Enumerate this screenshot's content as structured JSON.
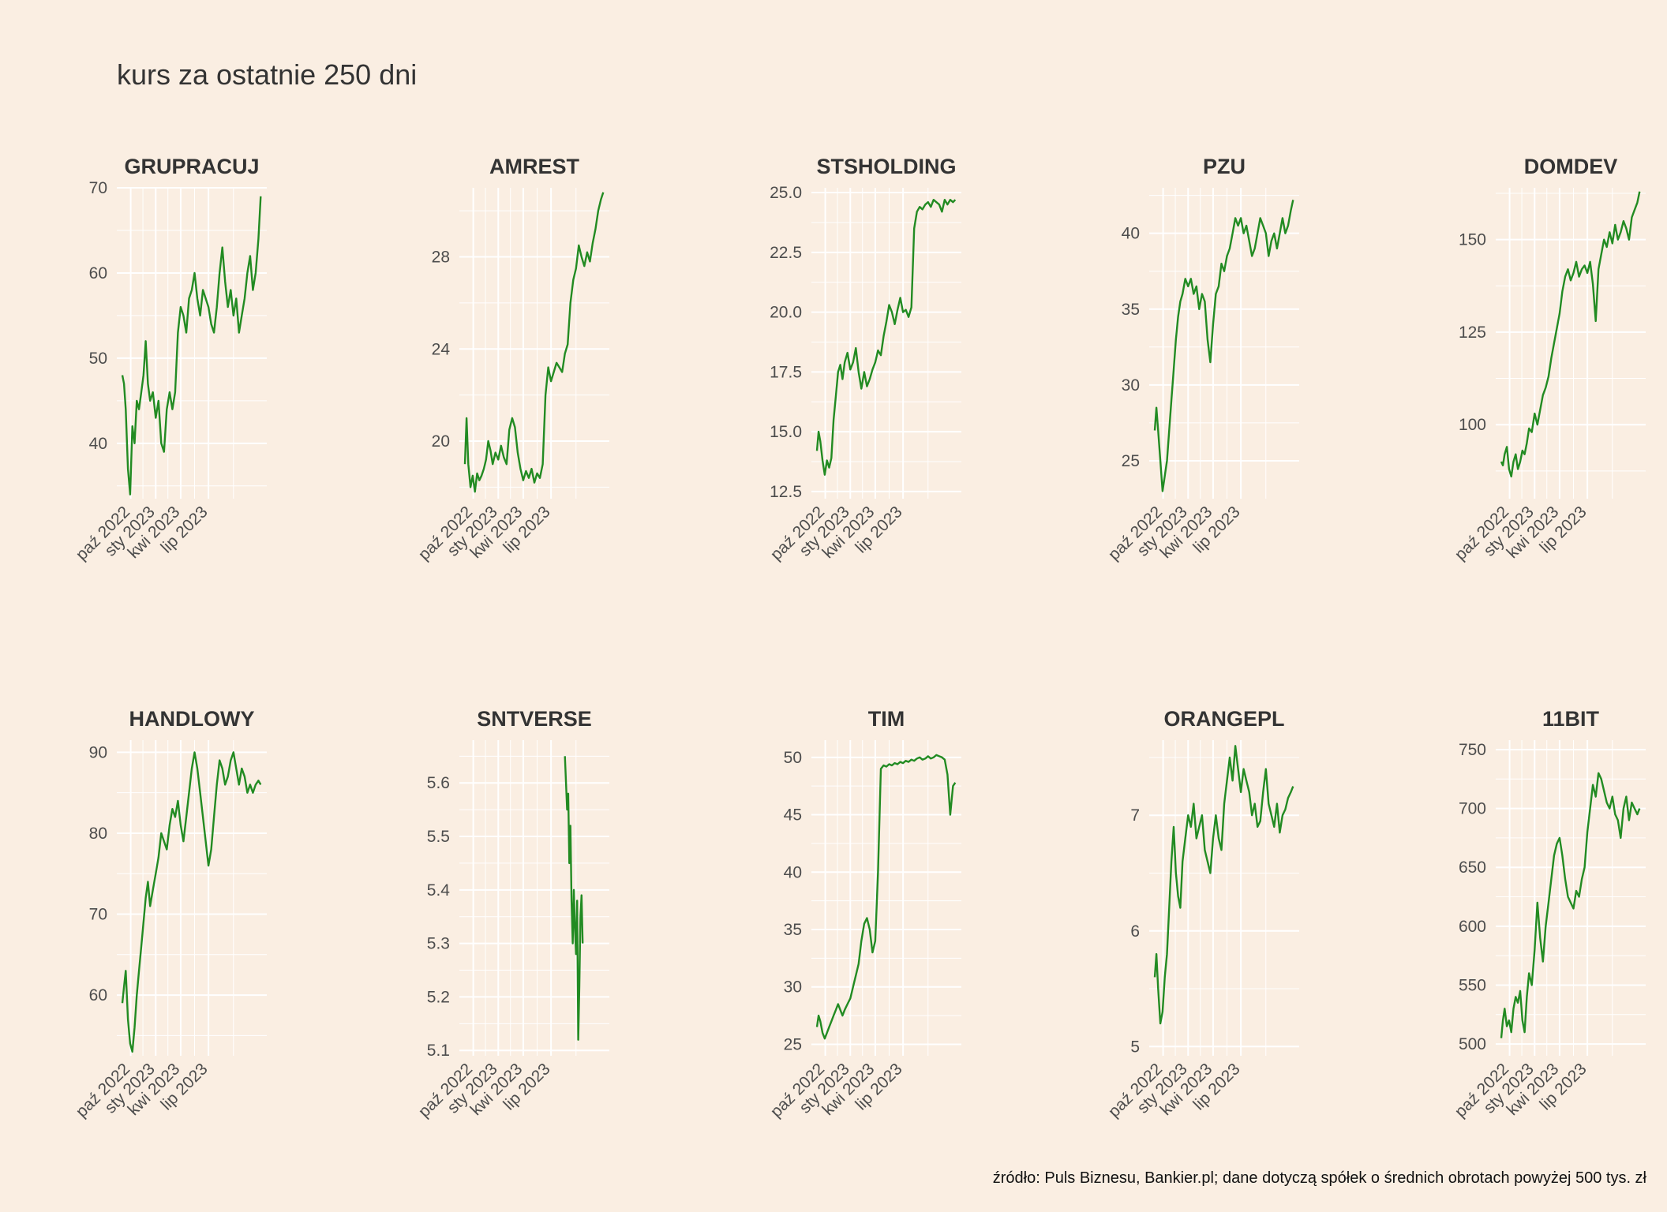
{
  "title": "kurs za ostatnie 250 dni",
  "caption": "źródło: Puls Biznesu, Bankier.pl; dane dotyczą spółek o średnich obrotach powyżej 500 tys. zł",
  "colors": {
    "background": "#FAEEE2",
    "line": "#228B22",
    "grid": "#FFFFFF"
  },
  "x_tick_labels": [
    "paź 2022",
    "sty 2023",
    "kwi 2023",
    "lip 2023"
  ],
  "chart_data": [
    {
      "type": "line",
      "title": "GRUPRACUJ",
      "ylim": [
        33.5,
        70
      ],
      "yticks": [
        40,
        50,
        60,
        70
      ],
      "x": [
        0,
        3,
        6,
        10,
        14,
        18,
        22,
        26,
        30,
        34,
        38,
        42,
        46,
        50,
        55,
        60,
        65,
        70,
        75,
        80,
        85,
        90,
        95,
        100,
        105,
        110,
        115,
        120,
        125,
        130,
        135,
        140,
        145,
        150,
        155,
        160,
        165,
        170,
        175,
        180,
        185,
        190,
        195,
        200,
        205,
        210,
        215,
        220,
        225,
        230,
        235,
        240,
        245,
        249
      ],
      "values": [
        48,
        47,
        44,
        37,
        34,
        42,
        40,
        45,
        44,
        46,
        48,
        52,
        47,
        45,
        46,
        43,
        45,
        40,
        39,
        44,
        46,
        44,
        46,
        53,
        56,
        55,
        53,
        57,
        58,
        60,
        57,
        55,
        58,
        57,
        56,
        54,
        53,
        56,
        60,
        63,
        59,
        56,
        58,
        55,
        57,
        53,
        55,
        57,
        60,
        62,
        58,
        60,
        64,
        69
      ]
    },
    {
      "type": "line",
      "title": "AMREST",
      "ylim": [
        17.5,
        31
      ],
      "yticks": [
        20,
        24,
        28
      ],
      "x": [
        0,
        3,
        6,
        10,
        14,
        18,
        22,
        26,
        30,
        34,
        38,
        42,
        46,
        50,
        55,
        60,
        65,
        70,
        75,
        80,
        85,
        90,
        95,
        100,
        105,
        110,
        115,
        120,
        125,
        130,
        135,
        140,
        145,
        150,
        155,
        160,
        165,
        170,
        175,
        180,
        185,
        190,
        195,
        200,
        205,
        210,
        215,
        220,
        225,
        230,
        235,
        240,
        245,
        249
      ],
      "values": [
        19,
        21,
        19,
        18,
        18.5,
        17.8,
        18.6,
        18.3,
        18.5,
        18.8,
        19.2,
        20,
        19.6,
        19,
        19.5,
        19.2,
        19.8,
        19.3,
        19,
        20.5,
        21,
        20.6,
        19.5,
        18.8,
        18.3,
        18.7,
        18.4,
        18.8,
        18.2,
        18.6,
        18.4,
        19,
        22,
        23.2,
        22.6,
        23,
        23.4,
        23.2,
        23,
        23.8,
        24.2,
        26,
        27,
        27.5,
        28.5,
        28,
        27.6,
        28.2,
        27.8,
        28.6,
        29.2,
        30,
        30.5,
        30.8
      ]
    },
    {
      "type": "line",
      "title": "STSHOLDING",
      "ylim": [
        12.2,
        25.2
      ],
      "yticks": [
        12.5,
        15.0,
        17.5,
        20.0,
        22.5,
        25.0
      ],
      "x": [
        0,
        3,
        6,
        10,
        14,
        18,
        22,
        26,
        30,
        34,
        38,
        42,
        46,
        50,
        55,
        60,
        65,
        70,
        75,
        80,
        85,
        90,
        95,
        100,
        105,
        110,
        115,
        120,
        125,
        130,
        135,
        140,
        145,
        150,
        155,
        160,
        165,
        170,
        175,
        180,
        185,
        190,
        195,
        200,
        205,
        210,
        215,
        220,
        225,
        230,
        235,
        240,
        245,
        249
      ],
      "values": [
        14.2,
        15,
        14.6,
        13.8,
        13.2,
        13.8,
        13.5,
        13.9,
        15.5,
        16.5,
        17.5,
        17.8,
        17.2,
        17.9,
        18.3,
        17.6,
        17.9,
        18.5,
        17.5,
        16.8,
        17.5,
        16.9,
        17.2,
        17.6,
        17.9,
        18.4,
        18.2,
        19,
        19.6,
        20.3,
        20,
        19.5,
        20.1,
        20.6,
        20,
        20.1,
        19.8,
        20.2,
        23.5,
        24.2,
        24.4,
        24.3,
        24.5,
        24.6,
        24.4,
        24.7,
        24.6,
        24.5,
        24.2,
        24.7,
        24.5,
        24.7,
        24.6,
        24.7
      ]
    },
    {
      "type": "line",
      "title": "PZU",
      "ylim": [
        22.5,
        43
      ],
      "yticks": [
        25,
        30,
        35,
        40
      ],
      "x": [
        0,
        3,
        6,
        10,
        14,
        18,
        22,
        26,
        30,
        34,
        38,
        42,
        46,
        50,
        55,
        60,
        65,
        70,
        75,
        80,
        85,
        90,
        95,
        100,
        105,
        110,
        115,
        120,
        125,
        130,
        135,
        140,
        145,
        150,
        155,
        160,
        165,
        170,
        175,
        180,
        185,
        190,
        195,
        200,
        205,
        210,
        215,
        220,
        225,
        230,
        235,
        240,
        245,
        249
      ],
      "values": [
        27,
        28.5,
        27,
        25,
        23,
        24,
        25,
        27,
        29,
        31,
        33,
        34.5,
        35.5,
        36,
        37,
        36.5,
        37,
        36,
        36.5,
        35,
        36,
        35.5,
        33,
        31.5,
        34,
        36,
        36.5,
        38,
        37.5,
        38.5,
        39,
        40,
        41,
        40.5,
        41,
        40,
        40.5,
        39.5,
        38.5,
        39,
        40,
        41,
        40.5,
        40,
        38.5,
        39.5,
        40,
        39,
        40,
        41,
        40,
        40.5,
        41.5,
        42.2
      ]
    },
    {
      "type": "line",
      "title": "DOMDEV",
      "ylim": [
        80,
        164
      ],
      "yticks": [
        100,
        125,
        150
      ],
      "x": [
        0,
        3,
        6,
        10,
        14,
        18,
        22,
        26,
        30,
        34,
        38,
        42,
        46,
        50,
        55,
        60,
        65,
        70,
        75,
        80,
        85,
        90,
        95,
        100,
        105,
        110,
        115,
        120,
        125,
        130,
        135,
        140,
        145,
        150,
        155,
        160,
        165,
        170,
        175,
        180,
        185,
        190,
        195,
        200,
        205,
        210,
        215,
        220,
        225,
        230,
        235,
        240,
        245,
        249
      ],
      "values": [
        90,
        89,
        92,
        94,
        88,
        86,
        90,
        92,
        88,
        90,
        93,
        92,
        95,
        99,
        98,
        103,
        100,
        104,
        108,
        110,
        113,
        118,
        122,
        126,
        130,
        136,
        140,
        142,
        139,
        141,
        144,
        140,
        142,
        143,
        141,
        144,
        138,
        128,
        142,
        146,
        150,
        148,
        152,
        149,
        154,
        150,
        152,
        155,
        153,
        150,
        156,
        158,
        160,
        163
      ]
    },
    {
      "type": "line",
      "title": "HANDLOWY",
      "ylim": [
        52.5,
        91.5
      ],
      "yticks": [
        60,
        70,
        80,
        90
      ],
      "x": [
        0,
        3,
        6,
        10,
        14,
        18,
        22,
        26,
        30,
        34,
        38,
        42,
        46,
        50,
        55,
        60,
        65,
        70,
        75,
        80,
        85,
        90,
        95,
        100,
        105,
        110,
        115,
        120,
        125,
        130,
        135,
        140,
        145,
        150,
        155,
        160,
        165,
        170,
        175,
        180,
        185,
        190,
        195,
        200,
        205,
        210,
        215,
        220,
        225,
        230,
        235,
        240,
        245,
        249
      ],
      "values": [
        59,
        61,
        63,
        57,
        54,
        53,
        56,
        60,
        63,
        66,
        69,
        72,
        74,
        71,
        73,
        75,
        77,
        80,
        79,
        78,
        81,
        83,
        82,
        84,
        81,
        79,
        82,
        85,
        88,
        90,
        88,
        85,
        82,
        79,
        76,
        78,
        82,
        86,
        89,
        88,
        86,
        87,
        89,
        90,
        88,
        86,
        88,
        87,
        85,
        86,
        85,
        86,
        86.5,
        86
      ]
    },
    {
      "type": "line",
      "title": "SNTVERSE",
      "ylim": [
        5.09,
        5.68
      ],
      "yticks": [
        5.1,
        5.2,
        5.3,
        5.4,
        5.5,
        5.6
      ],
      "x": [
        180,
        182,
        184,
        186,
        188,
        190,
        192,
        194,
        196,
        198,
        200,
        202,
        204,
        206,
        208,
        210,
        212
      ],
      "values": [
        5.65,
        5.6,
        5.55,
        5.58,
        5.45,
        5.52,
        5.38,
        5.3,
        5.4,
        5.33,
        5.28,
        5.38,
        5.12,
        5.22,
        5.35,
        5.39,
        5.3
      ]
    },
    {
      "type": "line",
      "title": "TIM",
      "ylim": [
        24,
        51.5
      ],
      "yticks": [
        25,
        30,
        35,
        40,
        45,
        50
      ],
      "x": [
        0,
        3,
        6,
        10,
        14,
        18,
        22,
        26,
        30,
        34,
        38,
        42,
        46,
        50,
        55,
        60,
        65,
        70,
        75,
        80,
        85,
        90,
        95,
        100,
        105,
        110,
        115,
        120,
        125,
        130,
        135,
        140,
        145,
        150,
        155,
        160,
        165,
        170,
        175,
        180,
        185,
        190,
        195,
        200,
        205,
        210,
        215,
        220,
        225,
        230,
        235,
        240,
        245,
        249
      ],
      "values": [
        26.5,
        27.5,
        27,
        26,
        25.5,
        26,
        26.5,
        27,
        27.5,
        28,
        28.5,
        28,
        27.5,
        28,
        28.5,
        29,
        30,
        31,
        32,
        34,
        35.5,
        36,
        35,
        33,
        34,
        40,
        49,
        49.3,
        49.2,
        49.4,
        49.3,
        49.5,
        49.4,
        49.6,
        49.5,
        49.7,
        49.6,
        49.8,
        49.7,
        49.9,
        50,
        49.8,
        49.9,
        50.1,
        49.9,
        50,
        50.2,
        50.1,
        50,
        49.8,
        48.5,
        45,
        47.5,
        47.8
      ]
    },
    {
      "type": "line",
      "title": "ORANGEPL",
      "ylim": [
        4.92,
        7.65
      ],
      "yticks": [
        5,
        6,
        7
      ],
      "x": [
        0,
        3,
        6,
        10,
        14,
        18,
        22,
        26,
        30,
        34,
        38,
        42,
        46,
        50,
        55,
        60,
        65,
        70,
        75,
        80,
        85,
        90,
        95,
        100,
        105,
        110,
        115,
        120,
        125,
        130,
        135,
        140,
        145,
        150,
        155,
        160,
        165,
        170,
        175,
        180,
        185,
        190,
        195,
        200,
        205,
        210,
        215,
        220,
        225,
        230,
        235,
        240,
        245,
        249
      ],
      "values": [
        5.6,
        5.8,
        5.5,
        5.2,
        5.3,
        5.6,
        5.8,
        6.2,
        6.6,
        6.9,
        6.5,
        6.3,
        6.2,
        6.6,
        6.8,
        7,
        6.9,
        7.1,
        6.8,
        6.9,
        7,
        6.7,
        6.6,
        6.5,
        6.8,
        7,
        6.8,
        6.7,
        7.1,
        7.3,
        7.5,
        7.3,
        7.6,
        7.4,
        7.2,
        7.4,
        7.3,
        7.2,
        7,
        7.1,
        6.9,
        6.95,
        7.2,
        7.4,
        7.1,
        7,
        6.9,
        7.1,
        6.85,
        7,
        7.05,
        7.15,
        7.2,
        7.25
      ]
    },
    {
      "type": "line",
      "title": "11BIT",
      "ylim": [
        490,
        758
      ],
      "yticks": [
        500,
        550,
        600,
        650,
        700,
        750
      ],
      "x": [
        0,
        3,
        6,
        10,
        14,
        18,
        22,
        26,
        30,
        34,
        38,
        42,
        46,
        50,
        55,
        60,
        65,
        70,
        75,
        80,
        85,
        90,
        95,
        100,
        105,
        110,
        115,
        120,
        125,
        130,
        135,
        140,
        145,
        150,
        155,
        160,
        165,
        170,
        175,
        180,
        185,
        190,
        195,
        200,
        205,
        210,
        215,
        220,
        225,
        230,
        235,
        240,
        245,
        249
      ],
      "values": [
        505,
        520,
        530,
        515,
        520,
        510,
        530,
        540,
        535,
        545,
        520,
        510,
        540,
        560,
        550,
        580,
        620,
        590,
        570,
        600,
        620,
        640,
        660,
        670,
        675,
        660,
        640,
        625,
        620,
        615,
        630,
        625,
        640,
        650,
        680,
        700,
        720,
        710,
        730,
        725,
        715,
        705,
        700,
        710,
        695,
        690,
        675,
        700,
        710,
        690,
        705,
        700,
        695,
        700
      ]
    }
  ]
}
